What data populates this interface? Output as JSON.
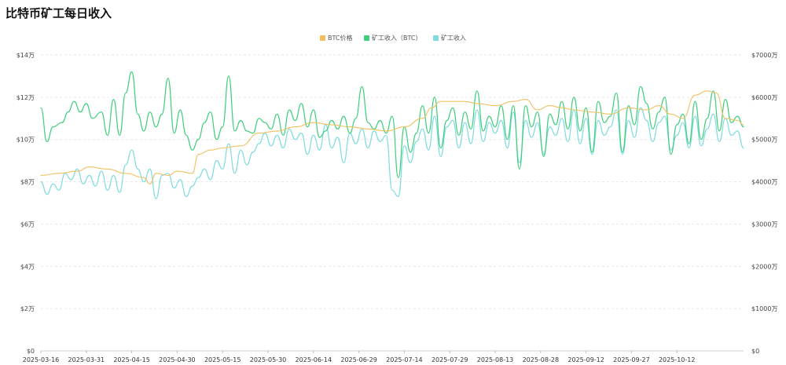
{
  "chart_data": {
    "type": "line",
    "title": "比特币矿工每日收入",
    "x_labels": [
      "2025-03-16",
      "2025-03-31",
      "2025-04-15",
      "2025-04-30",
      "2025-05-15",
      "2025-05-30",
      "2025-06-14",
      "2025-06-29",
      "2025-07-14",
      "2025-07-29",
      "2025-08-13",
      "2025-08-28",
      "2025-09-12",
      "2025-09-27",
      "2025-10-12"
    ],
    "y_left": {
      "ticks": [
        "$0",
        "$2万",
        "$4万",
        "$6万",
        "$8万",
        "$10万",
        "$12万",
        "$14万"
      ],
      "min": 0,
      "max": 14,
      "unit": "万"
    },
    "y_right": {
      "ticks": [
        "$0",
        "$1000万",
        "$2000万",
        "$3000万",
        "$4000万",
        "$5000万",
        "$6000万",
        "$7000万"
      ],
      "min": 0,
      "max": 7000,
      "unit": "万"
    },
    "grid": "horizontal-dashed",
    "legend_position": "top-center",
    "series": [
      {
        "name": "BTC价格",
        "axis": "left",
        "color": "#f0c060",
        "anchors": [
          [
            0,
            8.3
          ],
          [
            6,
            8.4
          ],
          [
            12,
            8.5
          ],
          [
            16,
            8.7
          ],
          [
            22,
            8.6
          ],
          [
            28,
            8.4
          ],
          [
            34,
            8.2
          ],
          [
            36,
            7.9
          ],
          [
            38,
            8.4
          ],
          [
            42,
            8.3
          ],
          [
            45,
            8.5
          ],
          [
            50,
            8.4
          ],
          [
            52,
            9.3
          ],
          [
            56,
            9.5
          ],
          [
            60,
            9.6
          ],
          [
            66,
            9.7
          ],
          [
            72,
            10.3
          ],
          [
            78,
            10.4
          ],
          [
            84,
            10.6
          ],
          [
            90,
            10.8
          ],
          [
            96,
            10.7
          ],
          [
            102,
            10.6
          ],
          [
            108,
            10.5
          ],
          [
            114,
            10.4
          ],
          [
            120,
            10.6
          ],
          [
            126,
            11.0
          ],
          [
            129,
            11.5
          ],
          [
            132,
            11.8
          ],
          [
            136,
            11.8
          ],
          [
            140,
            11.8
          ],
          [
            144,
            11.7
          ],
          [
            150,
            11.6
          ],
          [
            156,
            11.8
          ],
          [
            160,
            11.9
          ],
          [
            164,
            11.4
          ],
          [
            168,
            11.6
          ],
          [
            172,
            11.5
          ],
          [
            176,
            11.4
          ],
          [
            182,
            11.3
          ],
          [
            188,
            11.2
          ],
          [
            194,
            11.5
          ],
          [
            200,
            11.4
          ],
          [
            204,
            11.6
          ],
          [
            208,
            11.2
          ],
          [
            212,
            11.0
          ],
          [
            216,
            12.1
          ],
          [
            220,
            12.3
          ],
          [
            223,
            12.2
          ],
          [
            226,
            11.0
          ],
          [
            230,
            10.9
          ],
          [
            232,
            10.7
          ]
        ]
      },
      {
        "name": "矿工收入（BTC）",
        "axis": "left",
        "color": "#3ecf7b",
        "anchors": [
          [
            0,
            11.5
          ],
          [
            2,
            9.9
          ],
          [
            4,
            10.6
          ],
          [
            7,
            10.8
          ],
          [
            9,
            11.3
          ],
          [
            11,
            11.8
          ],
          [
            13,
            11.3
          ],
          [
            15,
            11.7
          ],
          [
            17,
            11.0
          ],
          [
            20,
            11.3
          ],
          [
            22,
            10.2
          ],
          [
            24,
            11.9
          ],
          [
            26,
            10.2
          ],
          [
            28,
            12.2
          ],
          [
            30,
            13.2
          ],
          [
            32,
            11.2
          ],
          [
            34,
            10.4
          ],
          [
            36,
            11.3
          ],
          [
            38,
            10.6
          ],
          [
            40,
            11.2
          ],
          [
            42,
            12.9
          ],
          [
            44,
            10.3
          ],
          [
            46,
            11.4
          ],
          [
            48,
            10.2
          ],
          [
            50,
            9.5
          ],
          [
            52,
            10.0
          ],
          [
            54,
            10.8
          ],
          [
            56,
            11.3
          ],
          [
            58,
            10.0
          ],
          [
            60,
            10.6
          ],
          [
            62,
            13.0
          ],
          [
            64,
            10.4
          ],
          [
            66,
            10.9
          ],
          [
            68,
            10.4
          ],
          [
            70,
            10.3
          ],
          [
            72,
            11.0
          ],
          [
            74,
            10.8
          ],
          [
            76,
            10.5
          ],
          [
            78,
            11.2
          ],
          [
            80,
            10.2
          ],
          [
            82,
            11.4
          ],
          [
            84,
            10.9
          ],
          [
            86,
            11.7
          ],
          [
            88,
            10.6
          ],
          [
            90,
            11.4
          ],
          [
            92,
            10.1
          ],
          [
            94,
            10.4
          ],
          [
            96,
            10.9
          ],
          [
            98,
            10.5
          ],
          [
            100,
            11.1
          ],
          [
            102,
            10.3
          ],
          [
            104,
            11.0
          ],
          [
            106,
            12.5
          ],
          [
            108,
            10.8
          ],
          [
            110,
            10.5
          ],
          [
            112,
            10.9
          ],
          [
            114,
            10.3
          ],
          [
            116,
            11.1
          ],
          [
            118,
            8.2
          ],
          [
            120,
            10.6
          ],
          [
            122,
            9.4
          ],
          [
            124,
            10.3
          ],
          [
            126,
            11.6
          ],
          [
            128,
            10.3
          ],
          [
            130,
            12.0
          ],
          [
            132,
            9.6
          ],
          [
            134,
            10.9
          ],
          [
            136,
            11.5
          ],
          [
            138,
            10.2
          ],
          [
            140,
            11.3
          ],
          [
            142,
            10.5
          ],
          [
            144,
            12.3
          ],
          [
            146,
            10.4
          ],
          [
            148,
            11.1
          ],
          [
            150,
            10.6
          ],
          [
            152,
            11.6
          ],
          [
            154,
            10.0
          ],
          [
            156,
            11.6
          ],
          [
            158,
            8.6
          ],
          [
            160,
            11.6
          ],
          [
            162,
            10.6
          ],
          [
            164,
            11.3
          ],
          [
            166,
            9.2
          ],
          [
            168,
            11.2
          ],
          [
            170,
            10.7
          ],
          [
            172,
            11.8
          ],
          [
            174,
            10.5
          ],
          [
            176,
            12.0
          ],
          [
            178,
            10.4
          ],
          [
            180,
            11.5
          ],
          [
            182,
            9.4
          ],
          [
            184,
            11.8
          ],
          [
            186,
            10.8
          ],
          [
            188,
            11.1
          ],
          [
            190,
            12.2
          ],
          [
            192,
            9.4
          ],
          [
            194,
            11.6
          ],
          [
            196,
            10.7
          ],
          [
            198,
            12.5
          ],
          [
            200,
            11.7
          ],
          [
            202,
            10.5
          ],
          [
            204,
            11.3
          ],
          [
            206,
            12.0
          ],
          [
            208,
            9.3
          ],
          [
            210,
            10.7
          ],
          [
            212,
            11.2
          ],
          [
            214,
            9.8
          ],
          [
            216,
            11.8
          ],
          [
            218,
            10.0
          ],
          [
            220,
            11.0
          ],
          [
            222,
            12.3
          ],
          [
            224,
            10.4
          ],
          [
            226,
            11.9
          ],
          [
            228,
            10.8
          ],
          [
            230,
            11.1
          ],
          [
            232,
            10.6
          ]
        ]
      },
      {
        "name": "矿工收入",
        "axis": "left",
        "color": "#7edbe0",
        "anchors": [
          [
            0,
            8.0
          ],
          [
            2,
            7.4
          ],
          [
            4,
            7.9
          ],
          [
            6,
            7.6
          ],
          [
            8,
            8.4
          ],
          [
            10,
            8.1
          ],
          [
            12,
            8.6
          ],
          [
            14,
            7.9
          ],
          [
            16,
            8.3
          ],
          [
            18,
            7.8
          ],
          [
            20,
            8.5
          ],
          [
            22,
            7.6
          ],
          [
            24,
            8.3
          ],
          [
            26,
            7.5
          ],
          [
            28,
            8.8
          ],
          [
            30,
            9.5
          ],
          [
            32,
            8.6
          ],
          [
            34,
            8.0
          ],
          [
            36,
            8.6
          ],
          [
            38,
            7.2
          ],
          [
            40,
            8.3
          ],
          [
            42,
            8.4
          ],
          [
            44,
            7.7
          ],
          [
            46,
            8.1
          ],
          [
            48,
            7.3
          ],
          [
            50,
            7.8
          ],
          [
            52,
            8.2
          ],
          [
            54,
            8.6
          ],
          [
            56,
            8.1
          ],
          [
            58,
            9.0
          ],
          [
            60,
            8.6
          ],
          [
            62,
            9.8
          ],
          [
            64,
            8.4
          ],
          [
            66,
            9.5
          ],
          [
            68,
            8.8
          ],
          [
            70,
            9.4
          ],
          [
            72,
            9.8
          ],
          [
            74,
            10.3
          ],
          [
            76,
            9.7
          ],
          [
            78,
            10.2
          ],
          [
            80,
            9.6
          ],
          [
            82,
            10.5
          ],
          [
            84,
            10.0
          ],
          [
            86,
            10.3
          ],
          [
            88,
            9.3
          ],
          [
            90,
            10.2
          ],
          [
            92,
            9.5
          ],
          [
            94,
            10.7
          ],
          [
            96,
            9.6
          ],
          [
            98,
            10.1
          ],
          [
            100,
            8.9
          ],
          [
            102,
            10.3
          ],
          [
            104,
            9.8
          ],
          [
            106,
            10.5
          ],
          [
            108,
            9.6
          ],
          [
            110,
            10.4
          ],
          [
            112,
            9.9
          ],
          [
            114,
            10.2
          ],
          [
            116,
            7.6
          ],
          [
            118,
            7.3
          ],
          [
            120,
            9.7
          ],
          [
            122,
            8.9
          ],
          [
            124,
            9.9
          ],
          [
            126,
            10.5
          ],
          [
            128,
            9.5
          ],
          [
            130,
            11.1
          ],
          [
            132,
            9.2
          ],
          [
            134,
            10.6
          ],
          [
            136,
            10.9
          ],
          [
            138,
            9.6
          ],
          [
            140,
            10.8
          ],
          [
            142,
            9.8
          ],
          [
            144,
            11.4
          ],
          [
            146,
            9.9
          ],
          [
            148,
            10.8
          ],
          [
            150,
            10.3
          ],
          [
            152,
            10.9
          ],
          [
            154,
            9.6
          ],
          [
            156,
            11.3
          ],
          [
            158,
            8.9
          ],
          [
            160,
            10.9
          ],
          [
            162,
            10.1
          ],
          [
            164,
            10.8
          ],
          [
            166,
            9.3
          ],
          [
            168,
            10.6
          ],
          [
            170,
            10.2
          ],
          [
            172,
            11.0
          ],
          [
            174,
            9.9
          ],
          [
            176,
            11.4
          ],
          [
            178,
            9.8
          ],
          [
            180,
            11.0
          ],
          [
            182,
            9.3
          ],
          [
            184,
            10.9
          ],
          [
            186,
            10.2
          ],
          [
            188,
            10.6
          ],
          [
            190,
            11.4
          ],
          [
            192,
            9.3
          ],
          [
            194,
            10.9
          ],
          [
            196,
            10.1
          ],
          [
            198,
            11.5
          ],
          [
            200,
            10.9
          ],
          [
            202,
            9.9
          ],
          [
            204,
            10.8
          ],
          [
            206,
            11.1
          ],
          [
            208,
            9.5
          ],
          [
            210,
            10.2
          ],
          [
            212,
            10.8
          ],
          [
            214,
            9.6
          ],
          [
            216,
            11.1
          ],
          [
            218,
            9.7
          ],
          [
            220,
            10.5
          ],
          [
            222,
            11.2
          ],
          [
            224,
            9.9
          ],
          [
            226,
            11.0
          ],
          [
            228,
            10.2
          ],
          [
            230,
            10.4
          ],
          [
            232,
            9.6
          ]
        ]
      }
    ]
  }
}
